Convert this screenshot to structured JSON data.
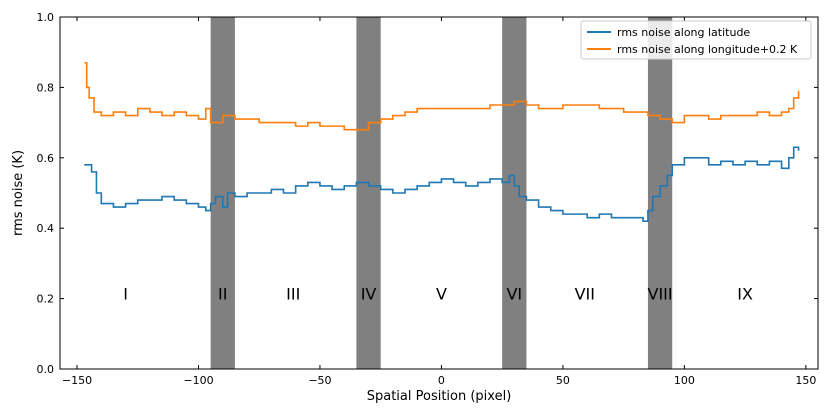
{
  "chart_data": {
    "type": "line",
    "step": true,
    "xlabel": "Spatial Position (pixel)",
    "ylabel": "rms noise (K)",
    "xlim": [
      -157,
      155
    ],
    "ylim": [
      0.0,
      1.0
    ],
    "xticks": [
      -150,
      -100,
      -50,
      0,
      50,
      100,
      150
    ],
    "xtick_labels": [
      "−150",
      "−100",
      "−50",
      "0",
      "50",
      "100",
      "150"
    ],
    "yticks": [
      0.0,
      0.2,
      0.4,
      0.6,
      0.8,
      1.0
    ],
    "ytick_labels": [
      "0.0",
      "0.2",
      "0.4",
      "0.6",
      "0.8",
      "1.0"
    ],
    "legend_position": "top-right",
    "colors": {
      "band": "#808080",
      "latitude": "#1f77b4",
      "longitude": "#ff7f0e"
    },
    "shaded_bands": [
      [
        -95,
        -85
      ],
      [
        -35,
        -25
      ],
      [
        25,
        35
      ],
      [
        85,
        95
      ]
    ],
    "region_labels": [
      {
        "text": "I",
        "x": -130
      },
      {
        "text": "II",
        "x": -90
      },
      {
        "text": "III",
        "x": -61
      },
      {
        "text": "IV",
        "x": -30
      },
      {
        "text": "V",
        "x": 0
      },
      {
        "text": "VI",
        "x": 30
      },
      {
        "text": "VII",
        "x": 59
      },
      {
        "text": "VIII",
        "x": 90
      },
      {
        "text": "IX",
        "x": 125
      }
    ],
    "region_label_y": 0.215,
    "series": [
      {
        "name": "rms noise along latitude",
        "color": "#1f77b4",
        "x": [
          -147,
          -144,
          -142,
          -140,
          -135,
          -130,
          -125,
          -120,
          -115,
          -110,
          -105,
          -100,
          -97,
          -95,
          -93,
          -90,
          -88,
          -85,
          -80,
          -75,
          -70,
          -65,
          -60,
          -55,
          -50,
          -45,
          -40,
          -35,
          -30,
          -25,
          -20,
          -15,
          -10,
          -5,
          0,
          5,
          10,
          15,
          20,
          25,
          28,
          30,
          32,
          35,
          40,
          45,
          50,
          55,
          60,
          65,
          70,
          75,
          80,
          83,
          85,
          87,
          90,
          93,
          95,
          100,
          105,
          110,
          115,
          120,
          125,
          130,
          135,
          140,
          143,
          145,
          147
        ],
        "y": [
          0.58,
          0.56,
          0.5,
          0.47,
          0.46,
          0.47,
          0.48,
          0.48,
          0.49,
          0.48,
          0.47,
          0.46,
          0.45,
          0.47,
          0.49,
          0.46,
          0.5,
          0.49,
          0.5,
          0.5,
          0.51,
          0.5,
          0.52,
          0.53,
          0.52,
          0.51,
          0.52,
          0.53,
          0.52,
          0.51,
          0.5,
          0.51,
          0.52,
          0.53,
          0.54,
          0.53,
          0.52,
          0.53,
          0.54,
          0.53,
          0.55,
          0.52,
          0.49,
          0.48,
          0.46,
          0.45,
          0.44,
          0.44,
          0.43,
          0.44,
          0.43,
          0.43,
          0.43,
          0.42,
          0.45,
          0.49,
          0.52,
          0.55,
          0.58,
          0.6,
          0.6,
          0.58,
          0.59,
          0.58,
          0.59,
          0.58,
          0.59,
          0.57,
          0.6,
          0.63,
          0.62
        ]
      },
      {
        "name": "rms noise along longitude+0.2 K",
        "color": "#ff7f0e",
        "x": [
          -147,
          -146,
          -145,
          -143,
          -140,
          -135,
          -130,
          -125,
          -120,
          -115,
          -110,
          -105,
          -100,
          -97,
          -95,
          -90,
          -85,
          -80,
          -75,
          -70,
          -65,
          -60,
          -55,
          -50,
          -45,
          -40,
          -35,
          -30,
          -25,
          -20,
          -15,
          -10,
          -5,
          0,
          5,
          10,
          15,
          20,
          25,
          30,
          35,
          40,
          45,
          50,
          55,
          60,
          65,
          70,
          75,
          80,
          85,
          90,
          95,
          100,
          105,
          110,
          115,
          120,
          125,
          130,
          135,
          140,
          143,
          145,
          147
        ],
        "y": [
          0.87,
          0.8,
          0.77,
          0.73,
          0.72,
          0.73,
          0.72,
          0.74,
          0.73,
          0.72,
          0.73,
          0.72,
          0.71,
          0.74,
          0.7,
          0.72,
          0.71,
          0.71,
          0.7,
          0.7,
          0.7,
          0.69,
          0.7,
          0.69,
          0.69,
          0.68,
          0.68,
          0.7,
          0.71,
          0.72,
          0.73,
          0.74,
          0.74,
          0.74,
          0.74,
          0.74,
          0.74,
          0.75,
          0.75,
          0.76,
          0.75,
          0.74,
          0.74,
          0.75,
          0.75,
          0.75,
          0.74,
          0.74,
          0.73,
          0.73,
          0.72,
          0.71,
          0.7,
          0.72,
          0.72,
          0.71,
          0.72,
          0.72,
          0.72,
          0.73,
          0.72,
          0.73,
          0.74,
          0.77,
          0.79
        ]
      }
    ]
  }
}
